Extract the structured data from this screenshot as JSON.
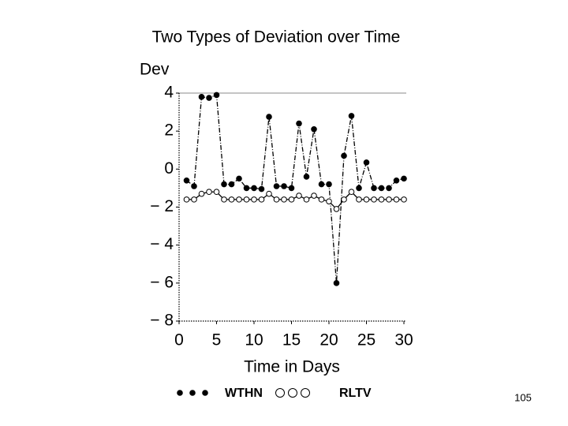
{
  "chart_data": {
    "type": "line",
    "title": "Two Types of Deviation over Time",
    "y_label": "Dev",
    "x_label": "Time in Days",
    "x": [
      1,
      2,
      3,
      4,
      5,
      6,
      7,
      8,
      9,
      10,
      11,
      12,
      13,
      14,
      15,
      16,
      17,
      18,
      19,
      20,
      21,
      22,
      23,
      24,
      25,
      26,
      27,
      28,
      29,
      30
    ],
    "series": [
      {
        "name": "WTHN",
        "color": "#000000",
        "marker": "filled",
        "values": [
          -0.6,
          -0.9,
          3.8,
          3.75,
          3.9,
          -0.8,
          -0.8,
          -0.5,
          -1.0,
          -1.0,
          -1.05,
          2.75,
          -0.9,
          -0.9,
          -1.0,
          2.4,
          -0.4,
          2.1,
          -0.8,
          -0.8,
          -6.0,
          0.7,
          2.8,
          -1.0,
          0.35,
          -1.0,
          -1.0,
          -1.0,
          -0.6,
          -0.5
        ]
      },
      {
        "name": "RLTV",
        "color": "#000000",
        "marker": "open",
        "values": [
          -1.6,
          -1.6,
          -1.3,
          -1.2,
          -1.2,
          -1.6,
          -1.6,
          -1.6,
          -1.6,
          -1.6,
          -1.6,
          -1.3,
          -1.6,
          -1.6,
          -1.6,
          -1.4,
          -1.6,
          -1.4,
          -1.6,
          -1.7,
          -2.1,
          -1.6,
          -1.2,
          -1.6,
          -1.6,
          -1.6,
          -1.6,
          -1.6,
          -1.6,
          -1.6
        ]
      }
    ],
    "xlim": [
      0,
      30
    ],
    "xticks": [
      0,
      5,
      10,
      15,
      20,
      25,
      30
    ],
    "ylim": [
      -8,
      4
    ],
    "yticks": [
      4,
      2,
      0,
      {
        "value": -2,
        "label": "− 2"
      },
      {
        "value": -4,
        "label": "− 4"
      },
      {
        "value": -6,
        "label": "− 6"
      },
      {
        "value": -8,
        "label": "− 8"
      }
    ],
    "grid": false
  },
  "page_number": "105"
}
